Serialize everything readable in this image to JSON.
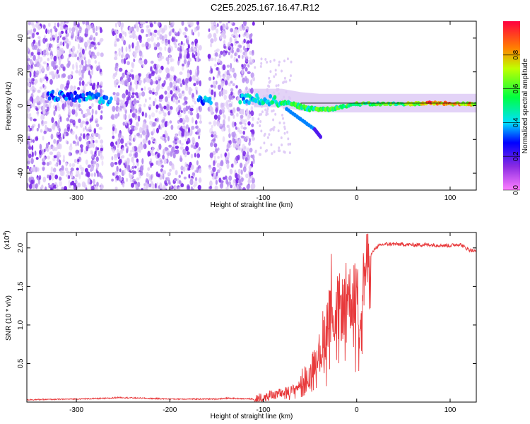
{
  "title": "C2E5.2025.167.16.47.R12",
  "chart_data": [
    {
      "type": "heatmap",
      "xlabel": "Height of straight line (km)",
      "ylabel": "Frequency (Hz)",
      "xlim": [
        -353,
        128
      ],
      "ylim": [
        -50,
        50
      ],
      "xticks": [
        -300,
        -200,
        -100,
        0,
        100
      ],
      "yticks": [
        -40,
        -20,
        0,
        20,
        40
      ],
      "colorbar": {
        "label": "Normalized spectral amplitude",
        "range": [
          0,
          1
        ],
        "ticks": [
          "0.0",
          "0.2",
          "0.4",
          "0.6",
          "0.8"
        ],
        "colormap": "rainbow (magenta → blue → cyan → green → yellow → red)"
      },
      "ridge_track": [
        {
          "x": -330,
          "f": 6,
          "amp": 0.35
        },
        {
          "x": -300,
          "f": 5,
          "amp": 0.3
        },
        {
          "x": -285,
          "f": 6,
          "amp": 0.4
        },
        {
          "x": -270,
          "f": 3,
          "amp": 0.35
        },
        {
          "x": -165,
          "f": 3,
          "amp": 0.35
        },
        {
          "x": -120,
          "f": 4,
          "amp": 0.4
        },
        {
          "x": -90,
          "f": 3,
          "amp": 0.45
        },
        {
          "x": -70,
          "f": 1,
          "amp": 0.55
        },
        {
          "x": -50,
          "f": -2,
          "amp": 0.55
        },
        {
          "x": -30,
          "f": -2,
          "amp": 0.6
        },
        {
          "x": 0,
          "f": 1,
          "amp": 0.55
        },
        {
          "x": 50,
          "f": 1,
          "amp": 0.6
        },
        {
          "x": 80,
          "f": 1.5,
          "amp": 0.85
        },
        {
          "x": 110,
          "f": 1,
          "amp": 0.8
        },
        {
          "x": 128,
          "f": 1,
          "amp": 0.75
        }
      ],
      "descending_branch": [
        {
          "x": -75,
          "f": -2
        },
        {
          "x": -60,
          "f": -8
        },
        {
          "x": -45,
          "f": -14
        },
        {
          "x": -38,
          "f": -19
        }
      ],
      "noise_band": [
        -353,
        -110
      ],
      "gaps": [
        [
          -272,
          -262
        ],
        [
          -167,
          -158
        ]
      ]
    },
    {
      "type": "line",
      "xlabel": "Height of straight line (km)",
      "ylabel": "SNR (10 * v/v)",
      "yscale_label": "(x10",
      "yscale_exp": "4",
      "yscale_close": ")",
      "xlim": [
        -353,
        128
      ],
      "ylim": [
        0,
        2.2
      ],
      "xticks": [
        -300,
        -200,
        -100,
        0,
        100
      ],
      "yticks": [
        0.5,
        1.0,
        1.5,
        2.0
      ],
      "series": [
        {
          "color": "#e8393b",
          "x": [
            -353,
            -300,
            -265,
            -255,
            -200,
            -150,
            -140,
            -110,
            -100,
            -90,
            -80,
            -70,
            -60,
            -50,
            -45,
            -40,
            -35,
            -30,
            -27,
            -24,
            -20,
            -15,
            -10,
            -5,
            0,
            3,
            6,
            10,
            15,
            20,
            25,
            30,
            40,
            60,
            80,
            100,
            110,
            120,
            128
          ],
          "y": [
            0.03,
            0.04,
            0.05,
            0.06,
            0.04,
            0.04,
            0.05,
            0.04,
            0.06,
            0.1,
            0.12,
            0.15,
            0.22,
            0.35,
            0.55,
            0.7,
            0.8,
            1.2,
            1.55,
            1.0,
            1.25,
            1.2,
            1.45,
            1.3,
            1.5,
            1.05,
            1.5,
            1.75,
            1.9,
            2.0,
            2.03,
            2.05,
            2.05,
            2.04,
            2.04,
            2.03,
            2.05,
            1.98,
            1.95
          ]
        }
      ]
    }
  ],
  "colors": {
    "series_line": "#e8393b",
    "noise_light": "#e0cdf7",
    "noise_dark": "#7a28e8",
    "axis": "#000000"
  }
}
